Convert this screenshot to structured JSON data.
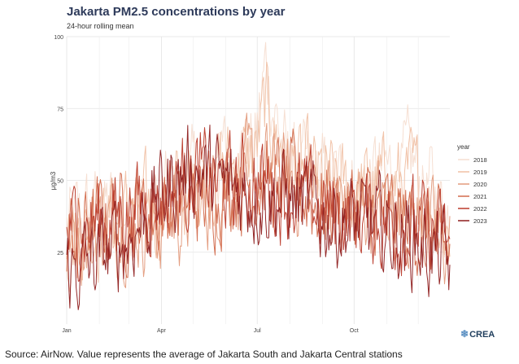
{
  "chart_data": {
    "type": "line",
    "title": "Jakarta PM2.5 concentrations by year",
    "subtitle": "24-hour rolling mean",
    "xlabel": "",
    "ylabel": "µg/m3",
    "x_domain": [
      "Jan 1",
      "Dec 31"
    ],
    "x_ticks": [
      "Jan",
      "Apr",
      "Jul",
      "Oct"
    ],
    "y_ticks": [
      25,
      50,
      75,
      100
    ],
    "ylim": [
      0,
      100
    ],
    "grid": true,
    "legend_title": "year",
    "legend_position": "right",
    "series": [
      {
        "name": "2018",
        "color": "#f6ddd0",
        "values": [
          [
            1,
            33
          ],
          [
            30,
            40
          ],
          [
            60,
            40
          ],
          [
            90,
            42
          ],
          [
            120,
            50
          ],
          [
            150,
            58
          ],
          [
            180,
            62
          ],
          [
            190,
            90
          ],
          [
            210,
            55
          ],
          [
            240,
            50
          ],
          [
            270,
            48
          ],
          [
            300,
            52
          ],
          [
            330,
            55
          ],
          [
            365,
            37
          ]
        ]
      },
      {
        "name": "2019",
        "color": "#f0c0a4",
        "values": [
          [
            1,
            30
          ],
          [
            30,
            34
          ],
          [
            60,
            38
          ],
          [
            90,
            40
          ],
          [
            120,
            48
          ],
          [
            150,
            55
          ],
          [
            180,
            58
          ],
          [
            190,
            75
          ],
          [
            210,
            55
          ],
          [
            240,
            50
          ],
          [
            270,
            45
          ],
          [
            300,
            48
          ],
          [
            330,
            50
          ],
          [
            365,
            32
          ]
        ]
      },
      {
        "name": "2020",
        "color": "#e39a7c",
        "values": [
          [
            1,
            28
          ],
          [
            30,
            34
          ],
          [
            60,
            36
          ],
          [
            90,
            34
          ],
          [
            120,
            40
          ],
          [
            150,
            48
          ],
          [
            180,
            52
          ],
          [
            210,
            50
          ],
          [
            240,
            45
          ],
          [
            270,
            42
          ],
          [
            300,
            40
          ],
          [
            330,
            38
          ],
          [
            365,
            26
          ]
        ]
      },
      {
        "name": "2021",
        "color": "#d26a4c",
        "values": [
          [
            1,
            30
          ],
          [
            30,
            35
          ],
          [
            60,
            38
          ],
          [
            90,
            40
          ],
          [
            120,
            42
          ],
          [
            150,
            48
          ],
          [
            180,
            50
          ],
          [
            210,
            48
          ],
          [
            240,
            42
          ],
          [
            270,
            40
          ],
          [
            300,
            38
          ],
          [
            330,
            36
          ],
          [
            365,
            24
          ]
        ]
      },
      {
        "name": "2022",
        "color": "#bb3b2b",
        "values": [
          [
            1,
            32
          ],
          [
            30,
            36
          ],
          [
            60,
            40
          ],
          [
            90,
            45
          ],
          [
            120,
            52
          ],
          [
            150,
            48
          ],
          [
            180,
            50
          ],
          [
            210,
            46
          ],
          [
            240,
            40
          ],
          [
            270,
            38
          ],
          [
            300,
            36
          ],
          [
            330,
            34
          ],
          [
            365,
            28
          ]
        ]
      },
      {
        "name": "2023",
        "color": "#8e1c1c",
        "values": [
          [
            1,
            18
          ],
          [
            30,
            22
          ],
          [
            60,
            30
          ],
          [
            90,
            45
          ],
          [
            120,
            55
          ],
          [
            150,
            48
          ],
          [
            180,
            45
          ],
          [
            210,
            44
          ],
          [
            240,
            38
          ],
          [
            270,
            35
          ],
          [
            300,
            33
          ],
          [
            330,
            30
          ],
          [
            365,
            20
          ]
        ]
      }
    ]
  },
  "source": "Source: AirNow. Value represents the average of Jakarta South and Jakarta Central stations",
  "logo_text": "CREA"
}
